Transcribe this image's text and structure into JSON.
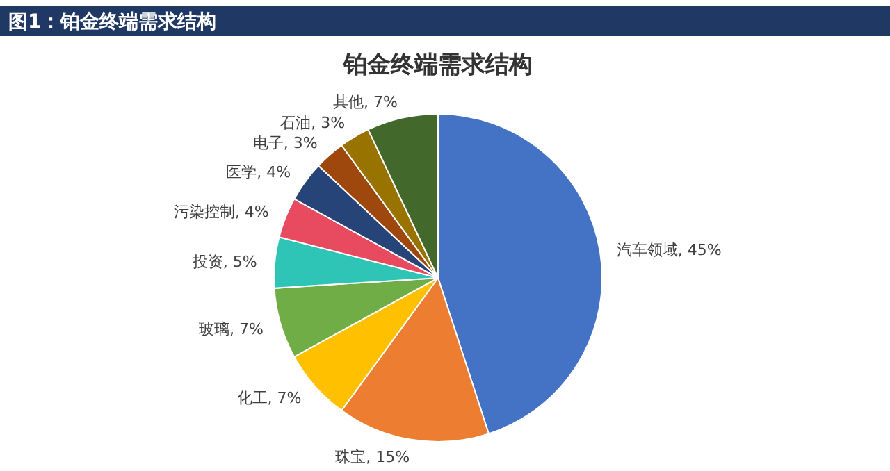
{
  "chart_data": {
    "type": "pie",
    "title": "图1：铂金终端需求结构",
    "subtitle": "铂金终端需求结构",
    "categories": [
      "汽车领域",
      "珠宝",
      "化工",
      "玻璃",
      "投资",
      "污染控制",
      "医学",
      "电子",
      "石油",
      "其他"
    ],
    "values": [
      45,
      15,
      7,
      7,
      5,
      4,
      4,
      3,
      3,
      7
    ],
    "colors": [
      "#4472c4",
      "#ed7d31",
      "#ffc000",
      "#70ad47",
      "#2ec4b6",
      "#e84a5f",
      "#264478",
      "#9e480e",
      "#997300",
      "#43682b"
    ],
    "value_labels": [
      ", 45%",
      ", 15%",
      ", 7%",
      ", 7%",
      ", 5%",
      ", 4%",
      ", 4%",
      ", 3%",
      ", 3%",
      ", 7%"
    ],
    "legend": false
  }
}
